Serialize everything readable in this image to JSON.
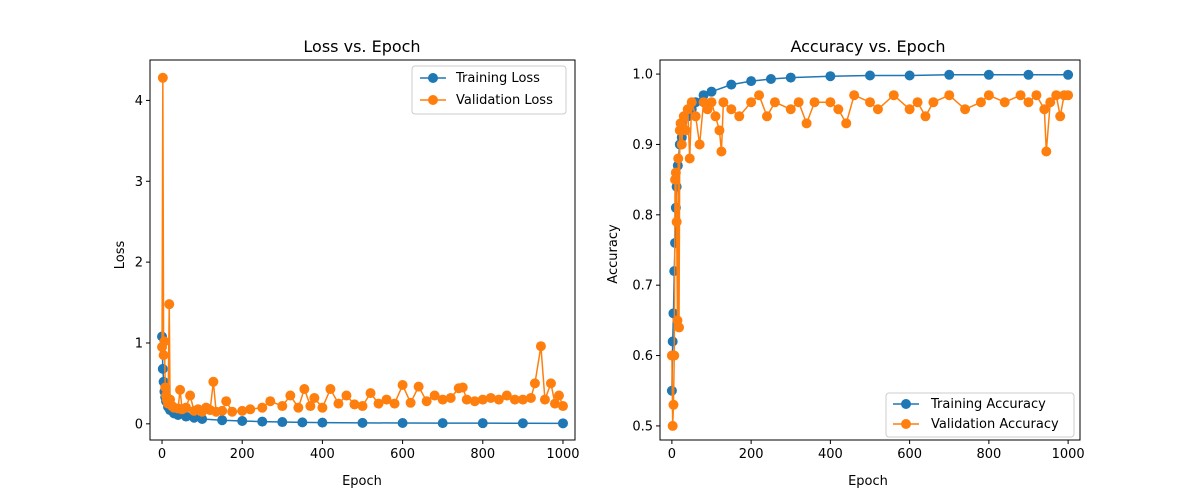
{
  "colors": {
    "training": "#1f77b4",
    "validation": "#ff7f0e"
  },
  "chart_data": [
    {
      "type": "line",
      "title": "Loss vs. Epoch",
      "xlabel": "Epoch",
      "ylabel": "Loss",
      "xlim": [
        -30,
        1030
      ],
      "ylim": [
        -0.2,
        4.5
      ],
      "xticks": [
        0,
        200,
        400,
        600,
        800,
        1000
      ],
      "yticks": [
        0,
        1,
        2,
        3,
        4
      ],
      "grid": false,
      "legend_position": "upper right",
      "series": [
        {
          "name": "Training Loss",
          "color_key": "training",
          "points": [
            [
              0,
              1.08
            ],
            [
              2,
              0.68
            ],
            [
              4,
              0.52
            ],
            [
              6,
              0.4
            ],
            [
              8,
              0.33
            ],
            [
              10,
              0.28
            ],
            [
              15,
              0.21
            ],
            [
              20,
              0.17
            ],
            [
              30,
              0.13
            ],
            [
              40,
              0.11
            ],
            [
              60,
              0.09
            ],
            [
              80,
              0.075
            ],
            [
              100,
              0.06
            ],
            [
              150,
              0.045
            ],
            [
              200,
              0.035
            ],
            [
              250,
              0.028
            ],
            [
              300,
              0.022
            ],
            [
              350,
              0.018
            ],
            [
              400,
              0.015
            ],
            [
              500,
              0.012
            ],
            [
              600,
              0.01
            ],
            [
              700,
              0.009
            ],
            [
              800,
              0.008
            ],
            [
              900,
              0.007
            ],
            [
              1000,
              0.006
            ]
          ]
        },
        {
          "name": "Validation Loss",
          "color_key": "validation",
          "points": [
            [
              0,
              0.95
            ],
            [
              2,
              4.28
            ],
            [
              4,
              0.85
            ],
            [
              6,
              1.02
            ],
            [
              8,
              0.45
            ],
            [
              10,
              0.35
            ],
            [
              12,
              0.3
            ],
            [
              15,
              0.25
            ],
            [
              18,
              1.48
            ],
            [
              20,
              0.3
            ],
            [
              25,
              0.22
            ],
            [
              30,
              0.2
            ],
            [
              40,
              0.19
            ],
            [
              45,
              0.42
            ],
            [
              50,
              0.18
            ],
            [
              60,
              0.2
            ],
            [
              70,
              0.35
            ],
            [
              80,
              0.16
            ],
            [
              90,
              0.18
            ],
            [
              100,
              0.15
            ],
            [
              110,
              0.2
            ],
            [
              120,
              0.17
            ],
            [
              128,
              0.52
            ],
            [
              135,
              0.15
            ],
            [
              150,
              0.16
            ],
            [
              160,
              0.28
            ],
            [
              175,
              0.15
            ],
            [
              200,
              0.16
            ],
            [
              220,
              0.18
            ],
            [
              250,
              0.2
            ],
            [
              270,
              0.28
            ],
            [
              300,
              0.22
            ],
            [
              320,
              0.35
            ],
            [
              340,
              0.2
            ],
            [
              355,
              0.43
            ],
            [
              370,
              0.22
            ],
            [
              380,
              0.32
            ],
            [
              400,
              0.2
            ],
            [
              420,
              0.43
            ],
            [
              440,
              0.25
            ],
            [
              460,
              0.35
            ],
            [
              480,
              0.24
            ],
            [
              500,
              0.22
            ],
            [
              520,
              0.38
            ],
            [
              540,
              0.25
            ],
            [
              560,
              0.3
            ],
            [
              580,
              0.25
            ],
            [
              600,
              0.48
            ],
            [
              620,
              0.26
            ],
            [
              640,
              0.46
            ],
            [
              660,
              0.28
            ],
            [
              680,
              0.35
            ],
            [
              700,
              0.3
            ],
            [
              720,
              0.32
            ],
            [
              740,
              0.44
            ],
            [
              750,
              0.45
            ],
            [
              760,
              0.3
            ],
            [
              780,
              0.28
            ],
            [
              800,
              0.3
            ],
            [
              820,
              0.32
            ],
            [
              840,
              0.3
            ],
            [
              860,
              0.35
            ],
            [
              880,
              0.3
            ],
            [
              900,
              0.3
            ],
            [
              920,
              0.32
            ],
            [
              930,
              0.5
            ],
            [
              945,
              0.96
            ],
            [
              955,
              0.3
            ],
            [
              970,
              0.5
            ],
            [
              980,
              0.25
            ],
            [
              990,
              0.35
            ],
            [
              1000,
              0.22
            ]
          ]
        }
      ]
    },
    {
      "type": "line",
      "title": "Accuracy vs. Epoch",
      "xlabel": "Epoch",
      "ylabel": "Accuracy",
      "xlim": [
        -30,
        1030
      ],
      "ylim": [
        0.48,
        1.02
      ],
      "xticks": [
        0,
        200,
        400,
        600,
        800,
        1000
      ],
      "yticks": [
        0.5,
        0.6,
        0.7,
        0.8,
        0.9,
        1.0
      ],
      "grid": false,
      "legend_position": "lower right",
      "series": [
        {
          "name": "Training Accuracy",
          "color_key": "training",
          "points": [
            [
              0,
              0.55
            ],
            [
              2,
              0.62
            ],
            [
              4,
              0.66
            ],
            [
              6,
              0.72
            ],
            [
              8,
              0.76
            ],
            [
              10,
              0.81
            ],
            [
              12,
              0.84
            ],
            [
              15,
              0.87
            ],
            [
              20,
              0.9
            ],
            [
              25,
              0.91
            ],
            [
              30,
              0.92
            ],
            [
              40,
              0.94
            ],
            [
              50,
              0.95
            ],
            [
              60,
              0.96
            ],
            [
              80,
              0.97
            ],
            [
              100,
              0.975
            ],
            [
              150,
              0.985
            ],
            [
              200,
              0.99
            ],
            [
              250,
              0.993
            ],
            [
              300,
              0.995
            ],
            [
              400,
              0.997
            ],
            [
              500,
              0.998
            ],
            [
              600,
              0.998
            ],
            [
              700,
              0.999
            ],
            [
              800,
              0.999
            ],
            [
              900,
              0.999
            ],
            [
              1000,
              0.999
            ]
          ]
        },
        {
          "name": "Validation Accuracy",
          "color_key": "validation",
          "points": [
            [
              0,
              0.6
            ],
            [
              2,
              0.5
            ],
            [
              4,
              0.53
            ],
            [
              6,
              0.6
            ],
            [
              8,
              0.85
            ],
            [
              10,
              0.86
            ],
            [
              12,
              0.79
            ],
            [
              14,
              0.65
            ],
            [
              16,
              0.88
            ],
            [
              18,
              0.64
            ],
            [
              20,
              0.92
            ],
            [
              22,
              0.93
            ],
            [
              25,
              0.9
            ],
            [
              30,
              0.94
            ],
            [
              35,
              0.92
            ],
            [
              40,
              0.95
            ],
            [
              45,
              0.88
            ],
            [
              50,
              0.96
            ],
            [
              60,
              0.94
            ],
            [
              70,
              0.9
            ],
            [
              80,
              0.96
            ],
            [
              90,
              0.95
            ],
            [
              100,
              0.96
            ],
            [
              110,
              0.94
            ],
            [
              120,
              0.92
            ],
            [
              125,
              0.89
            ],
            [
              130,
              0.96
            ],
            [
              150,
              0.95
            ],
            [
              170,
              0.94
            ],
            [
              200,
              0.96
            ],
            [
              220,
              0.97
            ],
            [
              240,
              0.94
            ],
            [
              260,
              0.96
            ],
            [
              300,
              0.95
            ],
            [
              320,
              0.96
            ],
            [
              340,
              0.93
            ],
            [
              360,
              0.96
            ],
            [
              400,
              0.96
            ],
            [
              420,
              0.95
            ],
            [
              440,
              0.93
            ],
            [
              460,
              0.97
            ],
            [
              500,
              0.96
            ],
            [
              520,
              0.95
            ],
            [
              560,
              0.97
            ],
            [
              600,
              0.95
            ],
            [
              620,
              0.96
            ],
            [
              640,
              0.94
            ],
            [
              660,
              0.96
            ],
            [
              700,
              0.97
            ],
            [
              740,
              0.95
            ],
            [
              780,
              0.96
            ],
            [
              800,
              0.97
            ],
            [
              840,
              0.96
            ],
            [
              880,
              0.97
            ],
            [
              900,
              0.96
            ],
            [
              920,
              0.97
            ],
            [
              940,
              0.95
            ],
            [
              945,
              0.89
            ],
            [
              955,
              0.96
            ],
            [
              970,
              0.97
            ],
            [
              980,
              0.94
            ],
            [
              990,
              0.97
            ],
            [
              1000,
              0.97
            ]
          ]
        }
      ]
    }
  ]
}
